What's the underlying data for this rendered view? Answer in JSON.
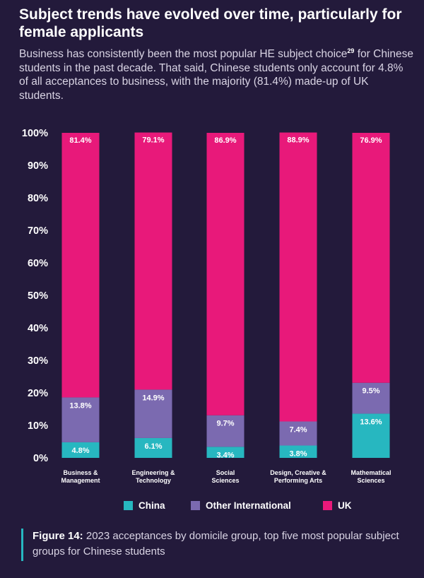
{
  "header": {
    "title": "Subject trends have evolved over time, particularly for female applicants",
    "subtitle": "Business has consistently been the most popular HE subject choice",
    "subtitle_ref": "29",
    "subtitle_cont": " for Chinese students in the past decade. That said, Chinese students only account for 4.8% of all acceptances to business, with the majority (81.4%) made-up of UK students."
  },
  "chart_data": {
    "type": "bar",
    "stacked": true,
    "categories": [
      [
        "Business &",
        "Management"
      ],
      [
        "Engineering &",
        "Technology"
      ],
      [
        "Social",
        "Sciences"
      ],
      [
        "Design, Creative &",
        "Performing Arts"
      ],
      [
        "Mathematical",
        "Sciences"
      ]
    ],
    "series": [
      {
        "name": "China",
        "color": "#27b7c0",
        "values": [
          4.8,
          6.1,
          3.4,
          3.8,
          13.6
        ],
        "labels": [
          "4.8%",
          "6.1%",
          "3.4%",
          "3.8%",
          "13.6%"
        ]
      },
      {
        "name": "Other International",
        "color": "#7b6ab0",
        "values": [
          13.8,
          14.9,
          9.7,
          7.4,
          9.5
        ],
        "labels": [
          "13.8%",
          "14.9%",
          "9.7%",
          "7.4%",
          "9.5%"
        ]
      },
      {
        "name": "UK",
        "color": "#e8197a",
        "values": [
          81.4,
          79.1,
          86.9,
          88.9,
          76.9
        ],
        "labels": [
          "81.4%",
          "79.1%",
          "86.9%",
          "88.9%",
          "76.9%"
        ]
      }
    ],
    "yticks": [
      "0%",
      "10%",
      "20%",
      "30%",
      "40%",
      "50%",
      "60%",
      "70%",
      "80%",
      "90%",
      "100%"
    ],
    "ylim": [
      0,
      100
    ],
    "grid": false,
    "legend_position": "bottom"
  },
  "caption": {
    "label": "Figure 14:",
    "text": " 2023 acceptances by domicile group, top five most popular subject groups for Chinese students"
  }
}
